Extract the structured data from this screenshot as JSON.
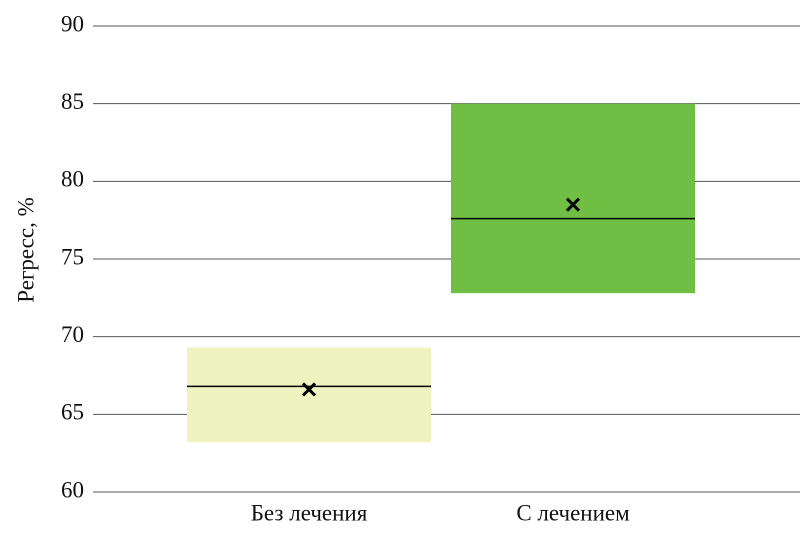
{
  "chart_data": {
    "type": "box",
    "y_label": "Регресс, %",
    "categories": [
      "Без лечения",
      "С лечением"
    ],
    "boxes": [
      {
        "q1": 63.2,
        "median": 66.8,
        "q3": 69.3,
        "mean": 66.6,
        "color": "#eef3c0"
      },
      {
        "q1": 72.8,
        "median": 77.6,
        "q3": 85,
        "mean": 78.5,
        "color": "#70bf44"
      }
    ],
    "ylim": [
      60,
      90
    ],
    "yticks": [
      60,
      65,
      70,
      75,
      80,
      85,
      90
    ],
    "grid": true
  }
}
